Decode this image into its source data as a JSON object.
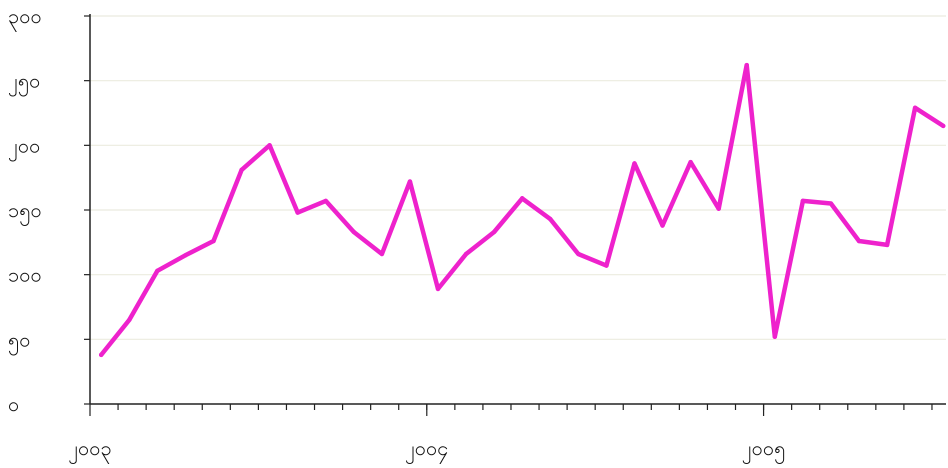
{
  "chart_data": {
    "type": "line",
    "title": "",
    "xlabel": "",
    "ylabel": "",
    "y_ticks": [
      {
        "value": 0,
        "label": "၀"
      },
      {
        "value": 50,
        "label": "၅၀"
      },
      {
        "value": 100,
        "label": "၁၀၀"
      },
      {
        "value": 150,
        "label": "၁၅၀"
      },
      {
        "value": 200,
        "label": "၂၀၀"
      },
      {
        "value": 250,
        "label": "၂၅၀"
      },
      {
        "value": 300,
        "label": "၃၀၀"
      }
    ],
    "x_ticks": [
      {
        "value": 0,
        "label": "၂၀၀၃"
      },
      {
        "value": 12,
        "label": "၂၀၀၄"
      },
      {
        "value": 24,
        "label": "၂၀၀၅"
      }
    ],
    "xlim": [
      0,
      30.5
    ],
    "ylim": [
      0,
      300
    ],
    "grid": {
      "horizontal": true,
      "vertical": false
    },
    "line_color": "#ee22cc",
    "series": [
      {
        "name": "",
        "x": [
          0.4,
          1.4,
          2.4,
          3.4,
          4.4,
          5.4,
          6.4,
          7.4,
          8.4,
          9.4,
          10.4,
          11.4,
          12.4,
          13.4,
          14.4,
          15.4,
          16.4,
          17.4,
          18.4,
          19.4,
          20.4,
          21.4,
          22.4,
          23.4,
          24.4,
          25.4,
          26.4,
          27.4,
          28.4,
          29.4,
          30.4
        ],
        "y": [
          38,
          65,
          103,
          115,
          126,
          181,
          200,
          148,
          157,
          133,
          116,
          172,
          89,
          116,
          133,
          159,
          143,
          116,
          107,
          186,
          138,
          187,
          151,
          262,
          52,
          157,
          155,
          126,
          123,
          229,
          215
        ]
      }
    ]
  }
}
